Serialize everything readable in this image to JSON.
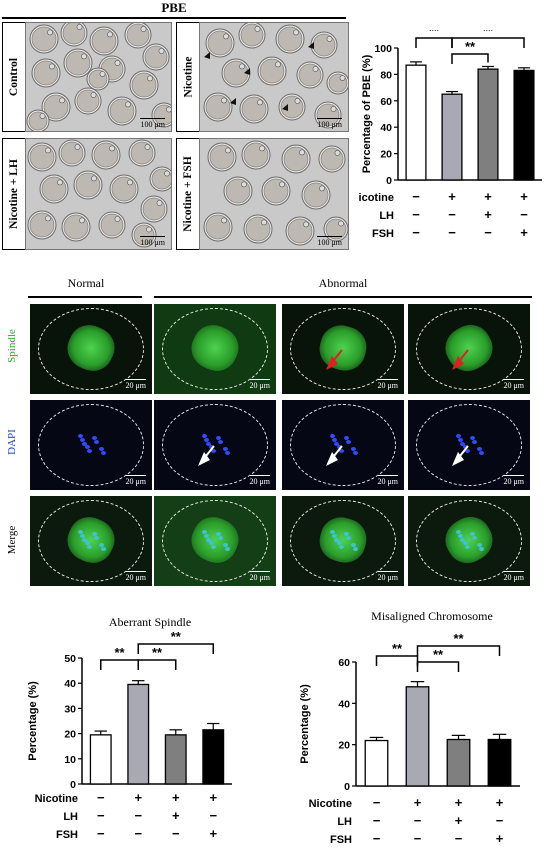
{
  "pbe_panel": {
    "title": "PBE",
    "row_labels": [
      "Control",
      "Nicotine",
      "Nicotine + LH",
      "Nicotine + FSH"
    ],
    "scale_label": "100 μm"
  },
  "if_panel": {
    "group_labels": [
      "Normal",
      "Abnormal"
    ],
    "channel_labels": [
      "Spindle",
      "DAPI",
      "Merge"
    ],
    "channel_colors": {
      "Spindle": "#2aa52a",
      "DAPI": "#1f3fc7",
      "Merge": "#000000"
    },
    "scale_label": "20 μm"
  },
  "treatment_table": {
    "row_labels": [
      "Nicotine",
      "LH",
      "FSH"
    ],
    "signs": [
      [
        "−",
        "+",
        "+",
        "+"
      ],
      [
        "−",
        "−",
        "+",
        "−"
      ],
      [
        "−",
        "−",
        "−",
        "+"
      ]
    ]
  },
  "chart_data": [
    {
      "id": "pbe",
      "type": "bar",
      "title": "",
      "ylabel": "Percentage of PBE (%)",
      "ylim": [
        0,
        100
      ],
      "yticks": [
        0,
        20,
        40,
        60,
        80,
        100
      ],
      "categories": [
        "Control",
        "Nicotine",
        "Nicotine + LH",
        "Nicotine + FSH"
      ],
      "values": [
        87,
        65,
        84,
        83
      ],
      "errors": [
        2.5,
        2,
        2,
        2
      ],
      "bar_colors": [
        "#ffffff",
        "#a9a9b3",
        "#7f7f7f",
        "#000000"
      ],
      "significance": [
        {
          "from": 0,
          "to": 1,
          "label": "**"
        },
        {
          "from": 1,
          "to": 2,
          "label": "**"
        },
        {
          "from": 1,
          "to": 3,
          "label": "**"
        }
      ]
    },
    {
      "id": "spindle",
      "type": "bar",
      "title": "Aberrant Spindle",
      "ylabel": "Percentage (%)",
      "ylim": [
        0,
        50
      ],
      "yticks": [
        0,
        10,
        20,
        30,
        40,
        50
      ],
      "categories": [
        "Control",
        "Nicotine",
        "Nicotine + LH",
        "Nicotine + FSH"
      ],
      "values": [
        19.5,
        39.5,
        19.5,
        21.5
      ],
      "errors": [
        1.5,
        1.5,
        2,
        2.5
      ],
      "bar_colors": [
        "#ffffff",
        "#a9a9b3",
        "#7f7f7f",
        "#000000"
      ],
      "significance": [
        {
          "from": 0,
          "to": 1,
          "label": "**"
        },
        {
          "from": 1,
          "to": 2,
          "label": "**"
        },
        {
          "from": 1,
          "to": 3,
          "label": "**"
        }
      ]
    },
    {
      "id": "chromosome",
      "type": "bar",
      "title": "Misaligned Chromosome",
      "ylabel": "Percentage (%)",
      "ylim": [
        0,
        60
      ],
      "yticks": [
        0,
        20,
        40,
        60
      ],
      "categories": [
        "Control",
        "Nicotine",
        "Nicotine + LH",
        "Nicotine + FSH"
      ],
      "values": [
        22,
        48,
        22.5,
        22.5
      ],
      "errors": [
        1.5,
        2.5,
        2,
        2.5
      ],
      "bar_colors": [
        "#ffffff",
        "#a9a9b3",
        "#7f7f7f",
        "#000000"
      ],
      "significance": [
        {
          "from": 0,
          "to": 1,
          "label": "**"
        },
        {
          "from": 1,
          "to": 2,
          "label": "**"
        },
        {
          "from": 1,
          "to": 3,
          "label": "**"
        }
      ]
    }
  ]
}
